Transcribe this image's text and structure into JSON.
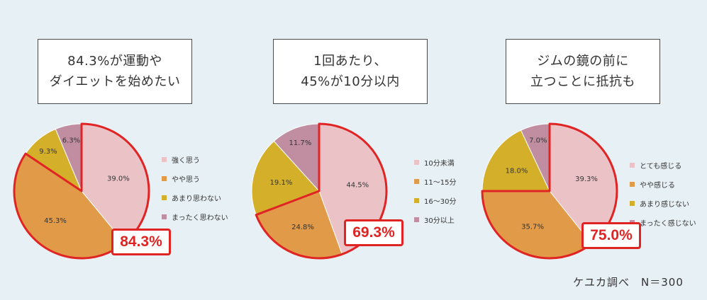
{
  "chart_data": [
    {
      "type": "pie",
      "title": [
        "84.3%が運動や",
        "ダイエットを始めたい"
      ],
      "categories": [
        "強く思う",
        "やや思う",
        "あまり思わない",
        "まったく思わない"
      ],
      "values": [
        39.0,
        45.3,
        9.3,
        6.3
      ],
      "labels": [
        "39.0%",
        "45.3%",
        "9.3%",
        "6.3%"
      ],
      "colors": [
        "#ebc3c7",
        "#e09a48",
        "#d4b02a",
        "#c08ea0"
      ],
      "highlight_indices": [
        0,
        1
      ],
      "highlight_total": "84.3%",
      "legend_position": "right"
    },
    {
      "type": "pie",
      "title": [
        "1回あたり、",
        "45%が10分以内"
      ],
      "categories": [
        "10分未満",
        "11〜15分",
        "16〜30分",
        "30分以上"
      ],
      "values": [
        44.5,
        24.8,
        19.1,
        11.7
      ],
      "labels": [
        "44.5%",
        "24.8%",
        "19.1%",
        "11.7%"
      ],
      "colors": [
        "#ebc3c7",
        "#e09a48",
        "#d4b02a",
        "#c08ea0"
      ],
      "highlight_indices": [
        0,
        1
      ],
      "highlight_total": "69.3%",
      "legend_position": "right"
    },
    {
      "type": "pie",
      "title": [
        "ジムの鏡の前に",
        "立つことに抵抗も"
      ],
      "categories": [
        "とても感じる",
        "やや感じる",
        "あまり感じない",
        "まったく感じない"
      ],
      "values": [
        39.3,
        35.7,
        18.0,
        7.0
      ],
      "labels": [
        "39.3%",
        "35.7%",
        "18.0%",
        "7.0%"
      ],
      "colors": [
        "#ebc3c7",
        "#e09a48",
        "#d4b02a",
        "#c08ea0"
      ],
      "highlight_indices": [
        0,
        1
      ],
      "highlight_total": "75.0%",
      "legend_position": "right"
    }
  ],
  "footer": {
    "source": "ケユカ調べ",
    "n": "N＝300"
  },
  "accent_color": "#e02424"
}
